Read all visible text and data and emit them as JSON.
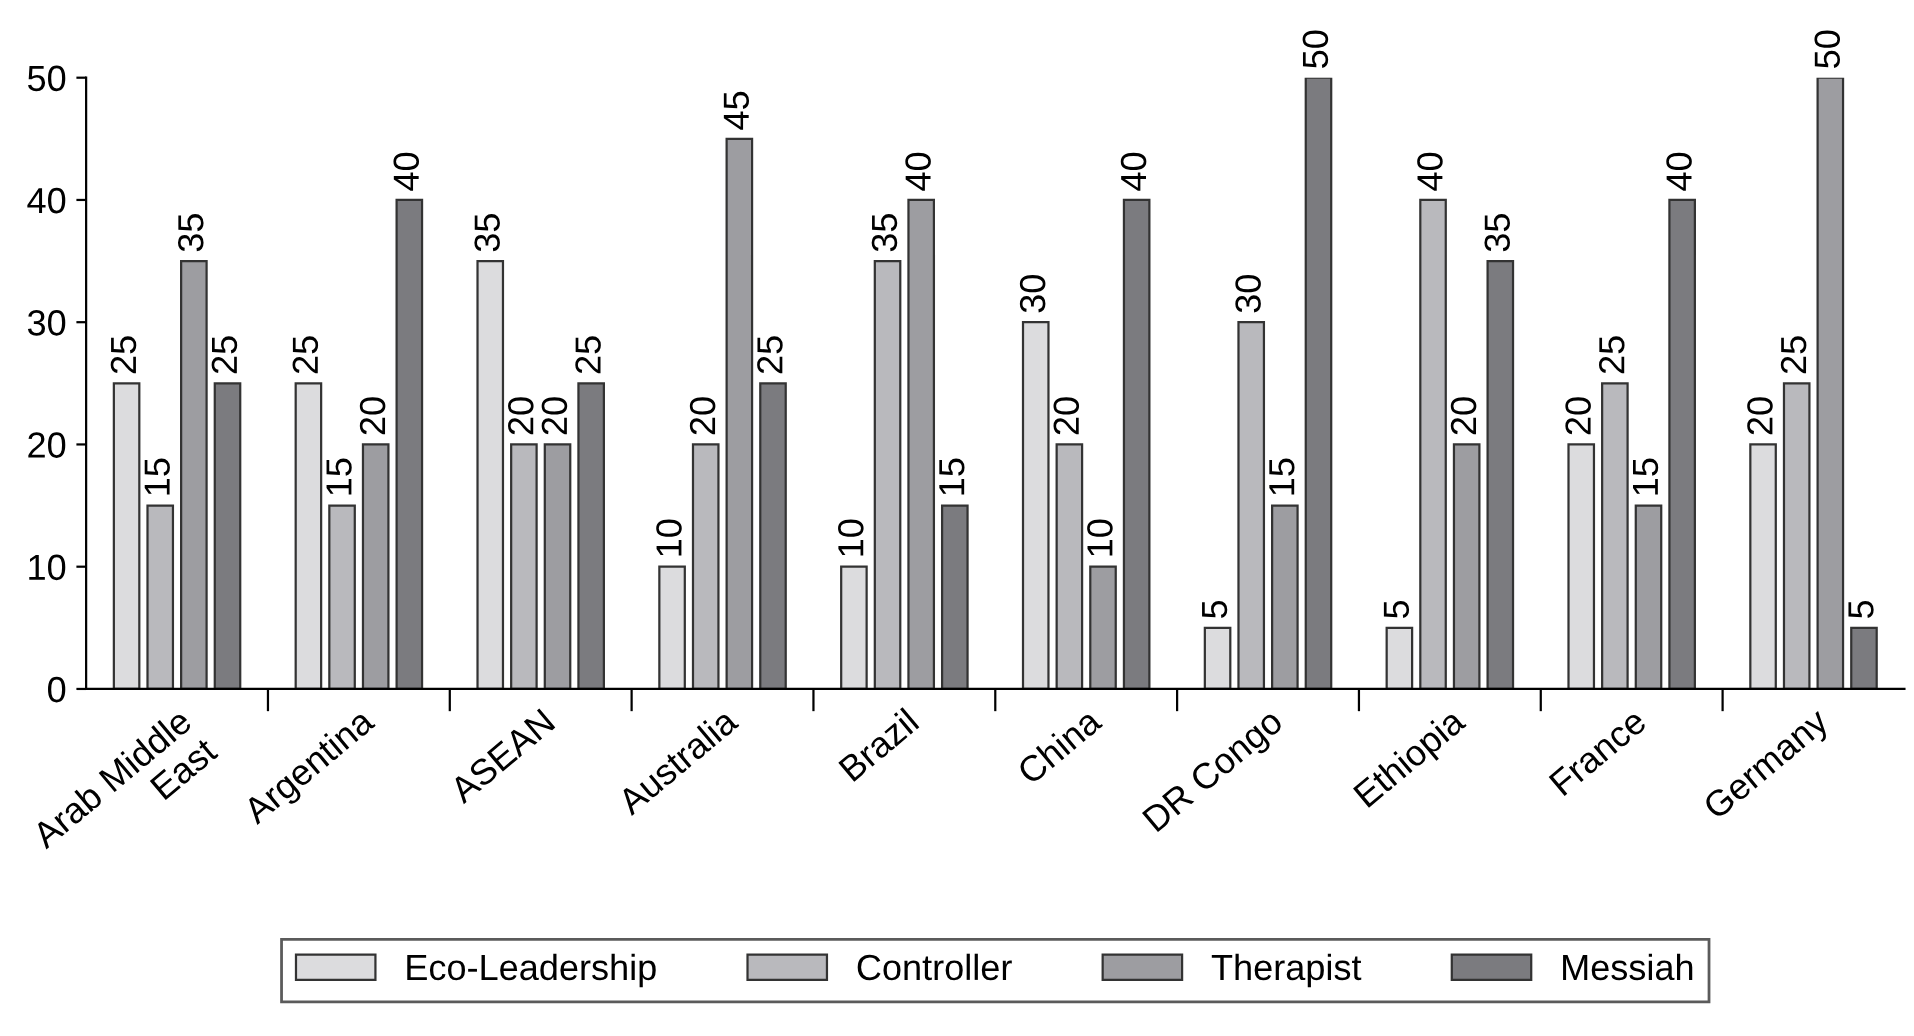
{
  "chart_data": {
    "type": "bar",
    "categories": [
      "Arab Middle\nEast",
      "Argentina",
      "ASEAN",
      "Australia",
      "Brazil",
      "China",
      "DR Congo",
      "Ethiopia",
      "France",
      "Germany"
    ],
    "series": [
      {
        "name": "Eco-Leadership",
        "color": "#dcdcde",
        "values": [
          25,
          25,
          35,
          10,
          10,
          30,
          5,
          5,
          20,
          20
        ]
      },
      {
        "name": "Controller",
        "color": "#b9b9bd",
        "values": [
          15,
          15,
          20,
          20,
          35,
          20,
          30,
          40,
          25,
          25
        ]
      },
      {
        "name": "Therapist",
        "color": "#9d9da1",
        "values": [
          35,
          20,
          20,
          45,
          40,
          10,
          15,
          20,
          15,
          50
        ]
      },
      {
        "name": "Messiah",
        "color": "#7b7b7f",
        "values": [
          25,
          40,
          25,
          25,
          15,
          40,
          50,
          35,
          40,
          5
        ]
      }
    ],
    "ylim": [
      0,
      50
    ],
    "yticks": [
      0,
      10,
      20,
      30,
      40,
      50
    ],
    "data_labels": true,
    "grid": false,
    "legend": "bottom"
  }
}
